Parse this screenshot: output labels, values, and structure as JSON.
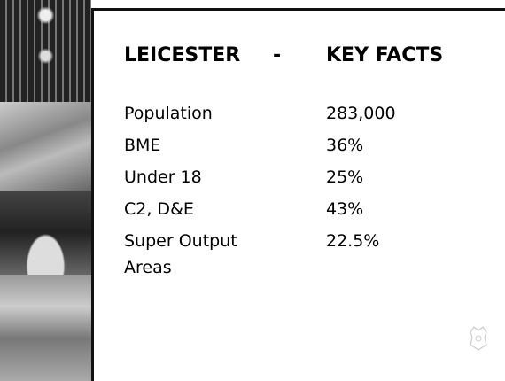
{
  "title": {
    "left": "LEICESTER",
    "separator": "-",
    "right": "KEY FACTS"
  },
  "facts": [
    {
      "label": "Population",
      "value": "283,000"
    },
    {
      "label": "BME",
      "value": "36%"
    },
    {
      "label": "Under 18",
      "value": "25%"
    },
    {
      "label": "C2, D&E",
      "value": "43%"
    },
    {
      "label": "Super Output Areas",
      "value": "22.5%"
    }
  ]
}
